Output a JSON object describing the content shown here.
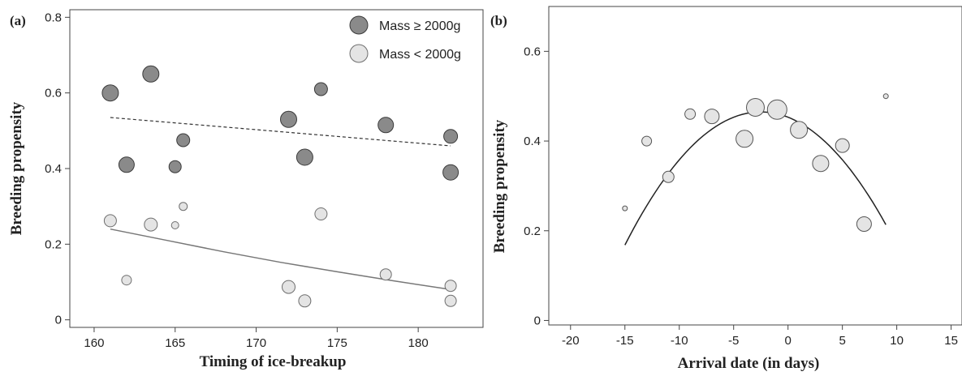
{
  "chart_data": [
    {
      "panel_label": "(a)",
      "type": "scatter",
      "xlabel": "Timing of ice-breakup",
      "ylabel": "Breeding propensity",
      "xlim": [
        158.5,
        184
      ],
      "ylim": [
        -0.02,
        0.82
      ],
      "xticks": [
        160,
        165,
        170,
        175,
        180
      ],
      "yticks": [
        0,
        0.2,
        0.4,
        0.6,
        0.8
      ],
      "ytick_labels": [
        "0",
        "0.2",
        "0.4",
        "0.6",
        "0.8"
      ],
      "legend_position": "top-right",
      "point_size_encoding": true,
      "series": [
        {
          "name": "Mass ≥ 2000g",
          "color": "#8a8a8a",
          "stroke": "#3a3a3a",
          "points": [
            {
              "x": 161,
              "y": 0.6,
              "r": 10
            },
            {
              "x": 162,
              "y": 0.41,
              "r": 9.5
            },
            {
              "x": 163.5,
              "y": 0.65,
              "r": 10
            },
            {
              "x": 165,
              "y": 0.405,
              "r": 7.5
            },
            {
              "x": 165.5,
              "y": 0.475,
              "r": 8
            },
            {
              "x": 172,
              "y": 0.53,
              "r": 10
            },
            {
              "x": 173,
              "y": 0.43,
              "r": 10
            },
            {
              "x": 174,
              "y": 0.61,
              "r": 8
            },
            {
              "x": 178,
              "y": 0.515,
              "r": 9.5
            },
            {
              "x": 182,
              "y": 0.485,
              "r": 8.5
            },
            {
              "x": 182,
              "y": 0.39,
              "r": 9.5
            }
          ],
          "fit": {
            "style": "dashed",
            "x": [
              161,
              182
            ],
            "y": [
              0.535,
              0.46
            ]
          }
        },
        {
          "name": "Mass < 2000g",
          "color": "#e4e4e4",
          "stroke": "#6e6e6e",
          "points": [
            {
              "x": 161,
              "y": 0.262,
              "r": 7.5
            },
            {
              "x": 162,
              "y": 0.105,
              "r": 6
            },
            {
              "x": 163.5,
              "y": 0.252,
              "r": 8
            },
            {
              "x": 165,
              "y": 0.25,
              "r": 4.5
            },
            {
              "x": 165.5,
              "y": 0.3,
              "r": 5
            },
            {
              "x": 172,
              "y": 0.087,
              "r": 8
            },
            {
              "x": 173,
              "y": 0.05,
              "r": 7.5
            },
            {
              "x": 174,
              "y": 0.28,
              "r": 7.5
            },
            {
              "x": 178,
              "y": 0.12,
              "r": 7
            },
            {
              "x": 182,
              "y": 0.09,
              "r": 7
            },
            {
              "x": 182,
              "y": 0.05,
              "r": 7
            }
          ],
          "fit": {
            "style": "solid",
            "x": [
              161,
              164.5,
              168,
              171.5,
              175,
              178.5,
              182
            ],
            "y": [
              0.24,
              0.21,
              0.18,
              0.152,
              0.127,
              0.103,
              0.08
            ]
          }
        }
      ]
    },
    {
      "panel_label": "(b)",
      "type": "scatter",
      "xlabel": "Arrival date (in days)",
      "ylabel": "Breeding propensity",
      "xlim": [
        -22,
        16
      ],
      "ylim": [
        -0.01,
        0.7
      ],
      "xticks": [
        -20,
        -15,
        -10,
        -5,
        0,
        5,
        10,
        15
      ],
      "yticks": [
        0,
        0.2,
        0.4,
        0.6
      ],
      "ytick_labels": [
        "0",
        "0.2",
        "0.4",
        "0.6"
      ],
      "point_size_encoding": true,
      "series": [
        {
          "color": "#e4e4e4",
          "stroke": "#555555",
          "points": [
            {
              "x": -15,
              "y": 0.25,
              "r": 3
            },
            {
              "x": -13,
              "y": 0.4,
              "r": 6
            },
            {
              "x": -11,
              "y": 0.32,
              "r": 7
            },
            {
              "x": -9,
              "y": 0.46,
              "r": 6.5
            },
            {
              "x": -7,
              "y": 0.455,
              "r": 9
            },
            {
              "x": -4,
              "y": 0.405,
              "r": 10.5
            },
            {
              "x": -3,
              "y": 0.475,
              "r": 11
            },
            {
              "x": -1,
              "y": 0.47,
              "r": 12
            },
            {
              "x": 1,
              "y": 0.425,
              "r": 10.5
            },
            {
              "x": 3,
              "y": 0.35,
              "r": 10
            },
            {
              "x": 5,
              "y": 0.39,
              "r": 8.5
            },
            {
              "x": 7,
              "y": 0.215,
              "r": 9
            },
            {
              "x": 9,
              "y": 0.5,
              "r": 3
            }
          ],
          "fit": {
            "style": "solid",
            "type": "quadratic",
            "x_range": [
              -15,
              9
            ],
            "vertex_x": -2.5,
            "vertex_y": 0.465,
            "curvature": 0.0019
          }
        }
      ]
    }
  ]
}
